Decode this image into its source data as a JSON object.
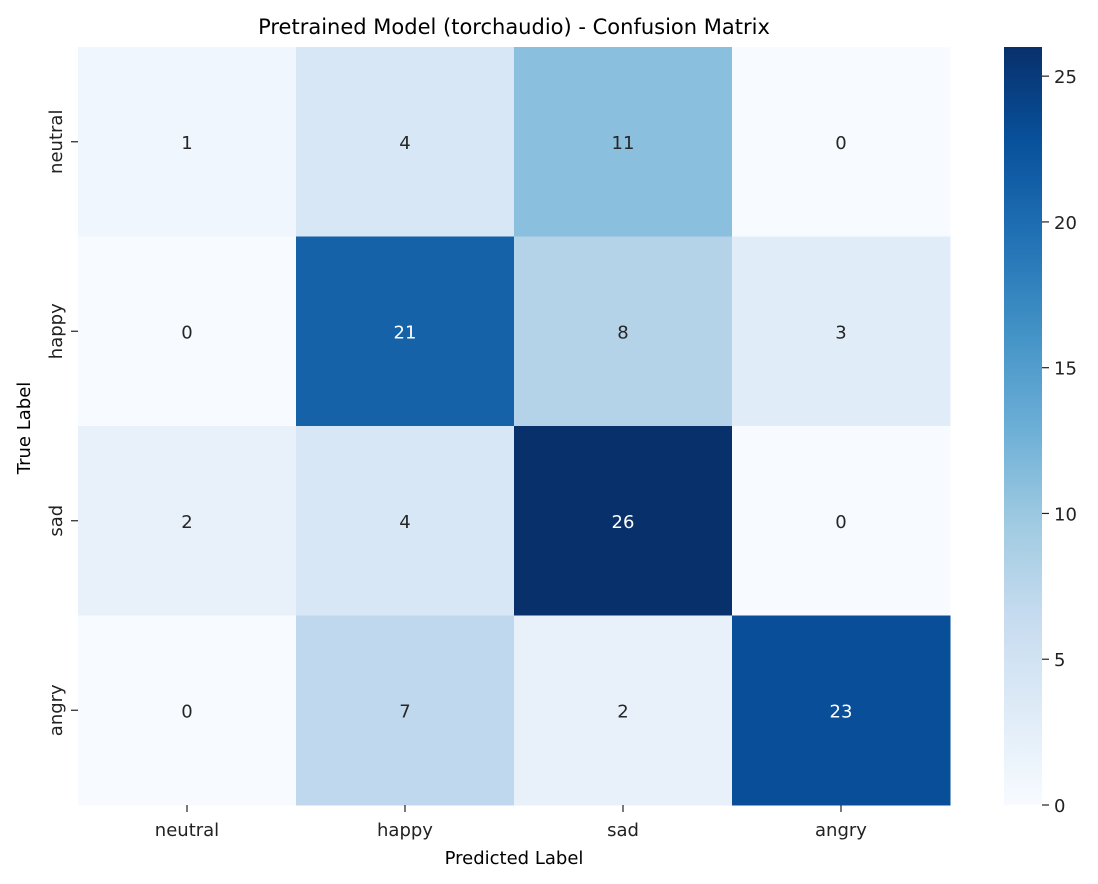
{
  "chart_data": {
    "type": "heatmap",
    "title": "Pretrained Model (torchaudio) - Confusion Matrix",
    "xlabel": "Predicted Label",
    "ylabel": "True Label",
    "x_categories": [
      "neutral",
      "happy",
      "sad",
      "angry"
    ],
    "y_categories": [
      "neutral",
      "happy",
      "sad",
      "angry"
    ],
    "values": [
      [
        1,
        4,
        11,
        0
      ],
      [
        0,
        21,
        8,
        3
      ],
      [
        2,
        4,
        26,
        0
      ],
      [
        0,
        7,
        2,
        23
      ]
    ],
    "colorbar": {
      "min": 0,
      "max": 26,
      "ticks": [
        0,
        5,
        10,
        15,
        20,
        25
      ]
    },
    "colormap": "Blues",
    "colors": {
      "low": "#f7fbff",
      "high": "#08306b"
    }
  }
}
